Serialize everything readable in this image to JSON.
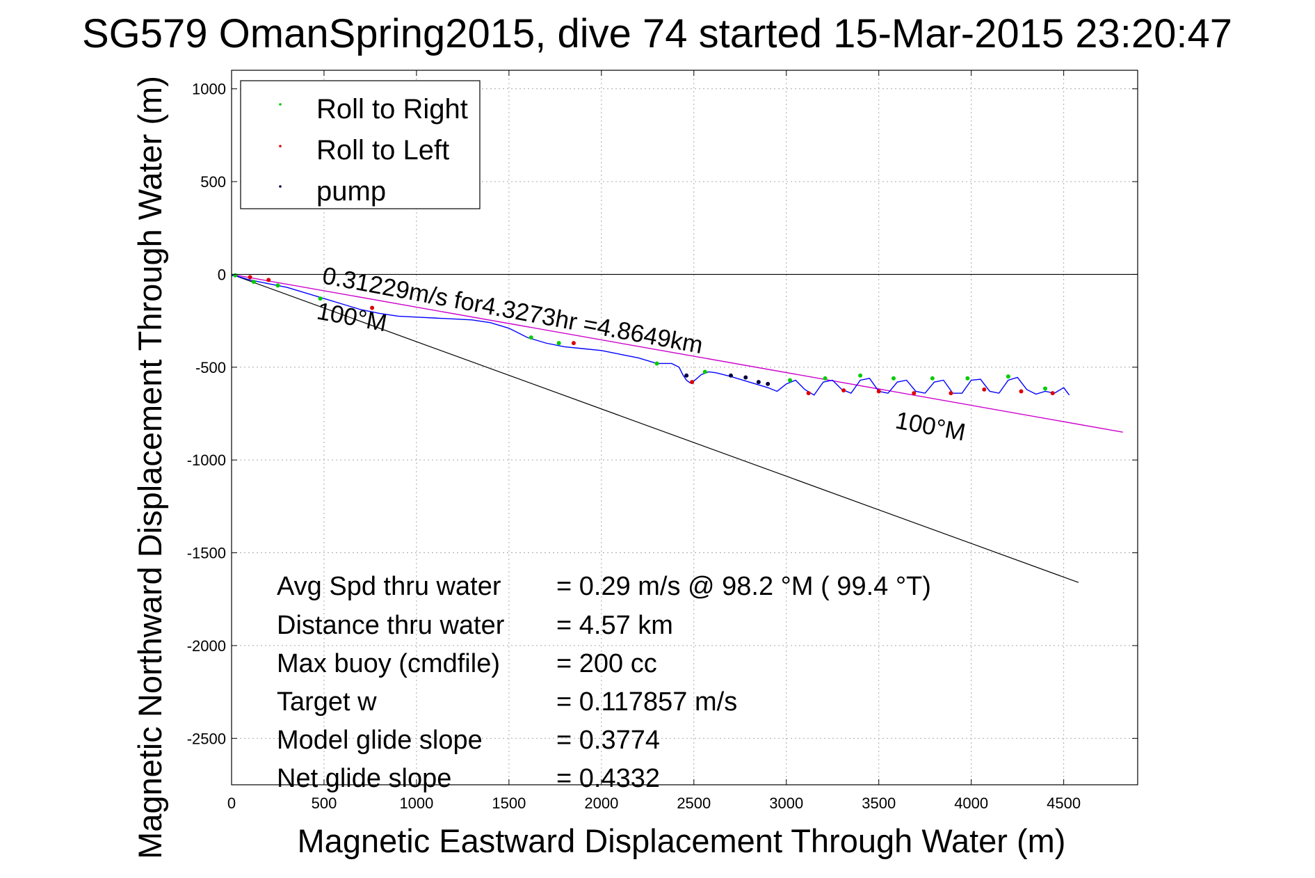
{
  "chart_data": {
    "type": "line",
    "title": "SG579 OmanSpring2015, dive 74 started 15-Mar-2015 23:20:47",
    "xlabel": "Magnetic Eastward Displacement Through Water (m)",
    "ylabel": "Magnetic Northward Displacement Through Water (m)",
    "xlim": [
      0,
      4900
    ],
    "ylim": [
      -2750,
      1100
    ],
    "xticks": [
      0,
      500,
      1000,
      1500,
      2000,
      2500,
      3000,
      3500,
      4000,
      4500
    ],
    "yticks": [
      1000,
      500,
      0,
      -500,
      -1000,
      -1500,
      -2000,
      -2500
    ],
    "grid": true,
    "legend_position": "top-left",
    "legend": [
      {
        "label": "Roll to Right",
        "color": "#00cc00"
      },
      {
        "label": "Roll to Left",
        "color": "#dd0000"
      },
      {
        "label": "pump",
        "color": "#000044"
      }
    ],
    "colors": {
      "track": "#0000ff",
      "course_line": "#cc00cc",
      "heading_line": "#000000",
      "zero_line": "#000000"
    },
    "series": [
      {
        "name": "track",
        "x": [
          0,
          30,
          100,
          200,
          300,
          400,
          500,
          600,
          700,
          800,
          900,
          1000,
          1100,
          1200,
          1300,
          1400,
          1500,
          1600,
          1700,
          1800,
          1900,
          2000,
          2100,
          2200,
          2300,
          2380,
          2420,
          2440,
          2460,
          2480,
          2500,
          2540,
          2580,
          2620,
          2700,
          2800,
          2900,
          2950,
          3000,
          3050,
          3100,
          3150,
          3200,
          3250,
          3300,
          3350,
          3400,
          3450,
          3500,
          3550,
          3600,
          3650,
          3700,
          3750,
          3800,
          3850,
          3900,
          3950,
          4000,
          4050,
          4100,
          4150,
          4200,
          4250,
          4300,
          4350,
          4400,
          4450,
          4500,
          4530
        ],
        "y": [
          -5,
          -10,
          -30,
          -50,
          -70,
          -100,
          -130,
          -160,
          -190,
          -210,
          -225,
          -230,
          -235,
          -240,
          -245,
          -260,
          -290,
          -340,
          -370,
          -390,
          -400,
          -410,
          -430,
          -450,
          -480,
          -480,
          -500,
          -540,
          -570,
          -585,
          -575,
          -540,
          -525,
          -530,
          -550,
          -580,
          -610,
          -630,
          -590,
          -570,
          -620,
          -650,
          -580,
          -570,
          -620,
          -640,
          -570,
          -560,
          -630,
          -640,
          -580,
          -570,
          -630,
          -640,
          -580,
          -570,
          -640,
          -640,
          -570,
          -565,
          -630,
          -640,
          -570,
          -555,
          -620,
          -645,
          -630,
          -640,
          -610,
          -650
        ]
      },
      {
        "name": "course_line",
        "x": [
          0,
          4820
        ],
        "y": [
          0,
          -850
        ]
      },
      {
        "name": "heading_line",
        "x": [
          0,
          4580
        ],
        "y": [
          0,
          -1660
        ]
      },
      {
        "name": "Roll to Right",
        "x": [
          20,
          120,
          250,
          480,
          1620,
          1770,
          2300,
          2560,
          3020,
          3210,
          3400,
          3580,
          3790,
          3980,
          4200,
          4400
        ],
        "y": [
          -5,
          -40,
          -60,
          -130,
          -340,
          -370,
          -480,
          -525,
          -570,
          -560,
          -545,
          -560,
          -560,
          -560,
          -550,
          -615
        ]
      },
      {
        "name": "Roll to Left",
        "x": [
          100,
          200,
          760,
          1850,
          2490,
          3120,
          3310,
          3500,
          3690,
          3890,
          4070,
          4270,
          4440
        ],
        "y": [
          -15,
          -30,
          -180,
          -370,
          -580,
          -640,
          -625,
          -630,
          -640,
          -640,
          -620,
          -630,
          -640
        ]
      },
      {
        "name": "pump",
        "x": [
          2460,
          2700,
          2780,
          2850,
          2900
        ],
        "y": [
          -545,
          -545,
          -555,
          -580,
          -590
        ]
      }
    ],
    "annotations": [
      {
        "text": "0.31229m/s for4.3273hr =4.8649km"
      },
      {
        "text": "100°M"
      },
      {
        "text": "100°M"
      }
    ],
    "stats": [
      {
        "label": "Avg Spd thru water",
        "value": "=  0.29 m/s @  98.2 °M ( 99.4 °T)"
      },
      {
        "label": "Distance thru water",
        "value": "=  4.57 km"
      },
      {
        "label": "Max buoy (cmdfile)",
        "value": "= 200 cc"
      },
      {
        "label": "Target w",
        "value": "= 0.117857 m/s"
      },
      {
        "label": "Model glide slope",
        "value": "= 0.3774"
      },
      {
        "label": "Net glide slope",
        "value": "= 0.4332"
      }
    ]
  }
}
